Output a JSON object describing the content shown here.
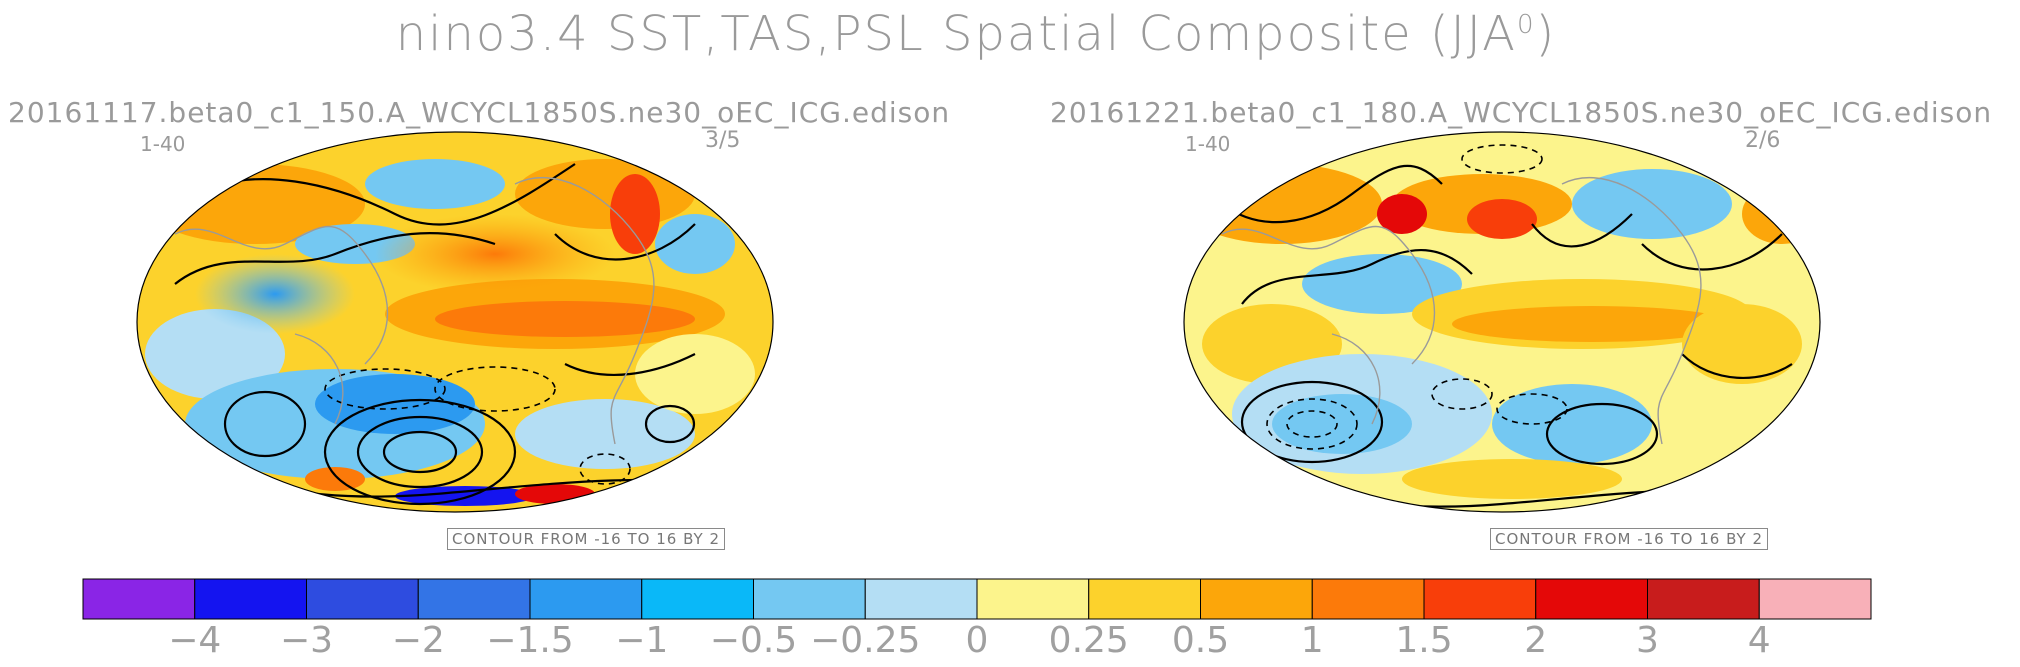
{
  "title": {
    "main": "nino3.4 SST,TAS,PSL Spatial Composite (JJA",
    "superscript": "0",
    "close": ")"
  },
  "panels": [
    {
      "run": "20161117.beta0_c1_150.A_WCYCL1850S.ne30_oEC_ICG.edison",
      "years": "1-40",
      "ratio": "3/5",
      "contour_note": "CONTOUR FROM -16 TO 16 BY 2"
    },
    {
      "run": "20161221.beta0_c1_180.A_WCYCL1850S.ne30_oEC_ICG.edison",
      "years": "1-40",
      "ratio": "2/6",
      "contour_note": "CONTOUR FROM -16 TO 16 BY 2"
    }
  ],
  "colorbar": {
    "labels": [
      "-4",
      "-3",
      "-2",
      "-1.5",
      "-1",
      "-0.5",
      "-0.25",
      "0",
      "0.25",
      "0.5",
      "1",
      "1.5",
      "2",
      "3",
      "4"
    ],
    "colors": [
      "#8a25e6",
      "#1414f0",
      "#2e4ce0",
      "#3374e6",
      "#2c9af0",
      "#0ab8f8",
      "#74c8f2",
      "#b4def4",
      "#fcf48c",
      "#fcd22c",
      "#fca60a",
      "#fc7a0a",
      "#f83e0a",
      "#e40808",
      "#c81c1c",
      "#f8b0b8"
    ]
  }
}
